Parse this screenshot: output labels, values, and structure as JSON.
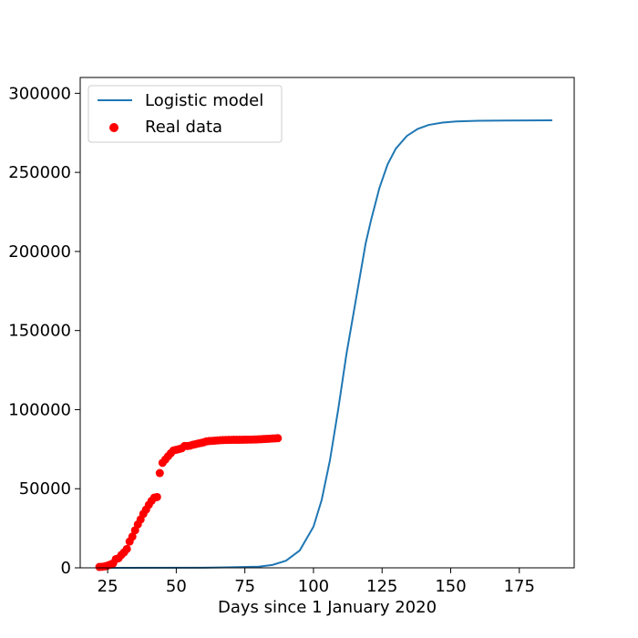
{
  "chart_data": {
    "type": "line",
    "xlabel": "Days since 1 January 2020",
    "ylabel": "",
    "xlim": [
      15,
      195
    ],
    "ylim": [
      0,
      310000
    ],
    "xticks": [
      25,
      50,
      75,
      100,
      125,
      150,
      175
    ],
    "yticks": [
      0,
      50000,
      100000,
      150000,
      200000,
      250000,
      300000
    ],
    "grid": false,
    "legend_position": "top-left",
    "series": [
      {
        "name": "Logistic model",
        "kind": "line",
        "color": "#1f77b4",
        "x": [
          22,
          60,
          80,
          85,
          90,
          95,
          100,
          103,
          106,
          109,
          112,
          115,
          117,
          119,
          121,
          124,
          127,
          130,
          134,
          138,
          142,
          147,
          152,
          160,
          170,
          187
        ],
        "y": [
          0,
          50,
          700,
          1800,
          4500,
          11000,
          26000,
          43000,
          68000,
          100000,
          135000,
          165000,
          185000,
          205000,
          220000,
          240000,
          255000,
          265000,
          273000,
          277500,
          280000,
          281500,
          282200,
          282600,
          282800,
          282900
        ]
      },
      {
        "name": "Real data",
        "kind": "scatter",
        "color": "#ff0000",
        "x": [
          22,
          23,
          24,
          25,
          26,
          27,
          28,
          29,
          30,
          31,
          32,
          33,
          34,
          35,
          36,
          37,
          38,
          39,
          40,
          41,
          42,
          43,
          44,
          45,
          46,
          47,
          48,
          49,
          50,
          51,
          52,
          53,
          54,
          55,
          56,
          57,
          58,
          59,
          60,
          61,
          62,
          63,
          64,
          65,
          66,
          67,
          68,
          69,
          70,
          71,
          72,
          73,
          74,
          75,
          76,
          77,
          78,
          79,
          80,
          81,
          82,
          83,
          84,
          85,
          86,
          87
        ],
        "y": [
          548,
          643,
          920,
          1406,
          2075,
          2877,
          5509,
          6087,
          8141,
          9802,
          11891,
          16630,
          19716,
          23707,
          27440,
          30587,
          34110,
          36814,
          39829,
          42354,
          44386,
          44759,
          59895,
          66358,
          68413,
          70513,
          72434,
          74211,
          74619,
          75077,
          75550,
          77001,
          77022,
          77241,
          77754,
          78166,
          78600,
          78928,
          79356,
          79932,
          80136,
          80261,
          80386,
          80537,
          80690,
          80770,
          80823,
          80860,
          80887,
          80921,
          80932,
          80945,
          80977,
          81003,
          81033,
          81058,
          81102,
          81156,
          81250,
          81305,
          81435,
          81498,
          81603,
          81747,
          81846,
          81960
        ]
      }
    ]
  }
}
